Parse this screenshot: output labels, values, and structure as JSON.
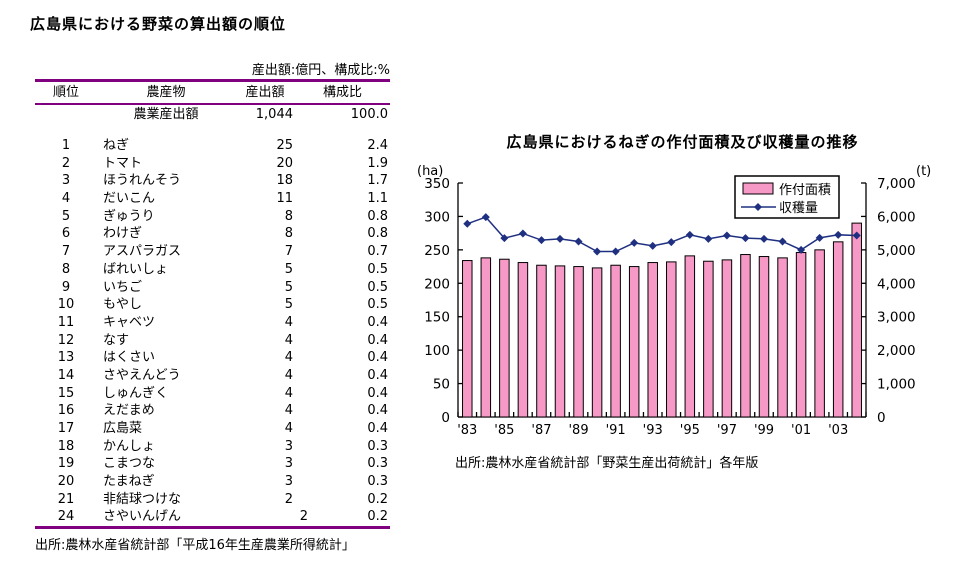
{
  "colors": {
    "bar_fill": "#f799c7",
    "bar_border": "#000000",
    "line": "#1f3080",
    "table_rule": "#800080",
    "axis": "#000000",
    "legend_border": "#000000",
    "background": "#ffffff"
  },
  "left_panel": {
    "title": "広島県における野菜の算出額の順位",
    "unit_note": "産出額:億円、構成比:%",
    "table": {
      "headers": [
        "順位",
        "農産物",
        "産出額",
        "構成比"
      ],
      "total_row": {
        "rank": "",
        "name": "農業産出額",
        "value": "1,044",
        "share": "100.0"
      },
      "rows": [
        {
          "rank": "1",
          "name": "ねぎ",
          "value": "25",
          "share": "2.4"
        },
        {
          "rank": "2",
          "name": "トマト",
          "value": "20",
          "share": "1.9"
        },
        {
          "rank": "3",
          "name": "ほうれんそう",
          "value": "18",
          "share": "1.7"
        },
        {
          "rank": "4",
          "name": "だいこん",
          "value": "11",
          "share": "1.1"
        },
        {
          "rank": "5",
          "name": "ぎゅうり",
          "value": "8",
          "share": "0.8"
        },
        {
          "rank": "6",
          "name": "わけぎ",
          "value": "8",
          "share": "0.8"
        },
        {
          "rank": "7",
          "name": "アスパラガス",
          "value": "7",
          "share": "0.7"
        },
        {
          "rank": "8",
          "name": "ばれいしょ",
          "value": "5",
          "share": "0.5"
        },
        {
          "rank": "9",
          "name": "いちご",
          "value": "5",
          "share": "0.5"
        },
        {
          "rank": "10",
          "name": "もやし",
          "value": "5",
          "share": "0.5"
        },
        {
          "rank": "11",
          "name": "キャベツ",
          "value": "4",
          "share": "0.4"
        },
        {
          "rank": "12",
          "name": "なす",
          "value": "4",
          "share": "0.4"
        },
        {
          "rank": "13",
          "name": "はくさい",
          "value": "4",
          "share": "0.4"
        },
        {
          "rank": "14",
          "name": "さやえんどう",
          "value": "4",
          "share": "0.4"
        },
        {
          "rank": "15",
          "name": "しゅんぎく",
          "value": "4",
          "share": "0.4"
        },
        {
          "rank": "16",
          "name": "えだまめ",
          "value": "4",
          "share": "0.4"
        },
        {
          "rank": "17",
          "name": "広島菜",
          "value": "4",
          "share": "0.4"
        },
        {
          "rank": "18",
          "name": "かんしょ",
          "value": "3",
          "share": "0.3"
        },
        {
          "rank": "19",
          "name": "こまつな",
          "value": "3",
          "share": "0.3"
        },
        {
          "rank": "20",
          "name": "たまねぎ",
          "value": "3",
          "share": "0.3"
        },
        {
          "rank": "21",
          "name": "非結球つけな",
          "value": "2",
          "share": "0.2"
        },
        {
          "rank": "24",
          "name": "さやいんげん",
          "value": "2",
          "share": "0.2",
          "indent": true
        }
      ]
    },
    "source": "出所:農林水産省統計部「平成16年生産農業所得統計」"
  },
  "right_panel": {
    "title": "広島県におけるねぎの作付面積及び収穫量の推移",
    "source": "出所:農林水産省統計部「野菜生産出荷統計」各年版"
  },
  "chart_data": {
    "type": "combo-bar-line",
    "title": "広島県におけるねぎの作付面積及び収穫量の推移",
    "x_years": [
      1983,
      1984,
      1985,
      1986,
      1987,
      1988,
      1989,
      1990,
      1991,
      1992,
      1993,
      1994,
      1995,
      1996,
      1997,
      1998,
      1999,
      2000,
      2001,
      2002,
      2003,
      2004
    ],
    "x_tick_labels": [
      "'83",
      "'85",
      "'87",
      "'89",
      "'91",
      "'93",
      "'95",
      "'97",
      "'99",
      "'01",
      "'03"
    ],
    "series": [
      {
        "name": "作付面積",
        "kind": "bar",
        "axis": "left",
        "unit": "ha",
        "values": [
          234,
          238,
          236,
          231,
          227,
          226,
          225,
          223,
          227,
          225,
          231,
          232,
          241,
          233,
          235,
          243,
          240,
          238,
          246,
          250,
          262,
          290
        ]
      },
      {
        "name": "収穫量",
        "kind": "line",
        "axis": "right",
        "unit": "t",
        "marker": "diamond",
        "values": [
          5780,
          5980,
          5350,
          5490,
          5290,
          5330,
          5250,
          4950,
          4950,
          5210,
          5120,
          5230,
          5450,
          5330,
          5430,
          5350,
          5330,
          5250,
          5000,
          5360,
          5450,
          5430
        ]
      }
    ],
    "left_axis": {
      "label": "(ha)",
      "min": 0,
      "max": 350,
      "tick_step": 50,
      "tick_labels": [
        "0",
        "50",
        "100",
        "150",
        "200",
        "250",
        "300",
        "350"
      ]
    },
    "right_axis": {
      "label": "(t)",
      "min": 0,
      "max": 7000,
      "tick_step": 1000,
      "tick_labels": [
        "0",
        "1,000",
        "2,000",
        "3,000",
        "4,000",
        "5,000",
        "6,000",
        "7,000"
      ]
    },
    "legend": {
      "position": "top-right-inside",
      "entries": [
        "作付面積",
        "収穫量"
      ]
    },
    "grid": false
  }
}
